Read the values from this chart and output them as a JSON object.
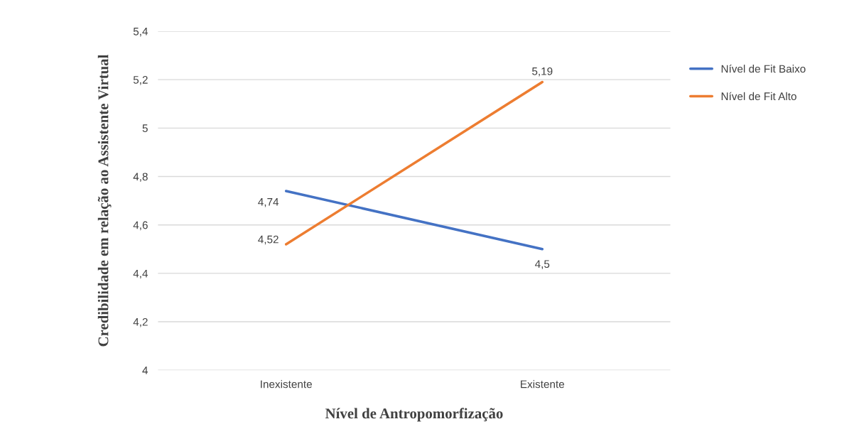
{
  "chart_data": {
    "type": "line",
    "xlabel": "Nível de Antropomorfização",
    "ylabel": "Credibilidade em relação ao Assistente Virtual",
    "categories": [
      "Inexistente",
      "Existente"
    ],
    "series": [
      {
        "name": "Nível de Fit Baixo",
        "color": "#4472c4",
        "values": [
          4.74,
          4.5
        ],
        "value_labels": [
          "4,74",
          "4,5"
        ]
      },
      {
        "name": "Nível de Fit Alto",
        "color": "#ed7d31",
        "values": [
          4.52,
          5.19
        ],
        "value_labels": [
          "4,52",
          "5,19"
        ]
      }
    ],
    "ylim": [
      4,
      5.4
    ],
    "yticks": [
      4,
      {
        "value": 4.2,
        "label": "4,2"
      },
      {
        "value": 4.4,
        "label": "4,4"
      },
      {
        "value": 4.6,
        "label": "4,6"
      },
      {
        "value": 4.8,
        "label": "4,8"
      },
      5,
      {
        "value": 5.2,
        "label": "5,2"
      },
      {
        "value": 5.4,
        "label": "5,4"
      }
    ],
    "grid": "y",
    "legend": "right",
    "marker": "none",
    "line_style": "solid"
  }
}
